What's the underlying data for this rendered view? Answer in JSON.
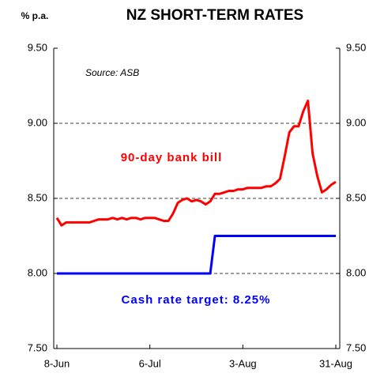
{
  "chart_data": {
    "type": "line",
    "title": "NZ SHORT-TERM RATES",
    "y_label": "% p.a.",
    "annotation": "Source: ASB",
    "categories": [
      "8-Jun",
      null,
      null,
      null,
      null,
      null,
      null,
      null,
      null,
      null,
      null,
      null,
      null,
      null,
      null,
      null,
      null,
      null,
      null,
      null,
      "6-Jul",
      null,
      null,
      null,
      null,
      null,
      null,
      null,
      null,
      null,
      null,
      null,
      null,
      null,
      null,
      null,
      null,
      null,
      null,
      null,
      "3-Aug",
      null,
      null,
      null,
      null,
      null,
      null,
      null,
      null,
      null,
      null,
      null,
      null,
      null,
      null,
      null,
      null,
      null,
      null,
      null,
      "31-Aug"
    ],
    "series": [
      {
        "name": "90-day bank bill",
        "color": "#ff0000",
        "values": [
          8.37,
          8.32,
          8.34,
          8.34,
          8.34,
          8.34,
          8.34,
          8.34,
          8.35,
          8.36,
          8.36,
          8.36,
          8.37,
          8.36,
          8.37,
          8.36,
          8.37,
          8.37,
          8.36,
          8.37,
          8.37,
          8.37,
          8.36,
          8.35,
          8.35,
          8.4,
          8.47,
          8.49,
          8.5,
          8.48,
          8.49,
          8.48,
          8.46,
          8.48,
          8.53,
          8.53,
          8.54,
          8.55,
          8.55,
          8.56,
          8.56,
          8.57,
          8.57,
          8.57,
          8.57,
          8.58,
          8.58,
          8.6,
          8.63,
          8.78,
          8.94,
          8.98,
          8.98,
          9.08,
          9.15,
          8.8,
          8.65,
          8.54,
          8.56,
          8.59,
          8.61
        ]
      },
      {
        "name": "Cash rate target: 8.25%",
        "color": "#0000ff",
        "values": [
          8.0,
          8.0,
          8.0,
          8.0,
          8.0,
          8.0,
          8.0,
          8.0,
          8.0,
          8.0,
          8.0,
          8.0,
          8.0,
          8.0,
          8.0,
          8.0,
          8.0,
          8.0,
          8.0,
          8.0,
          8.0,
          8.0,
          8.0,
          8.0,
          8.0,
          8.0,
          8.0,
          8.0,
          8.0,
          8.0,
          8.0,
          8.0,
          8.0,
          8.0,
          8.25,
          8.25,
          8.25,
          8.25,
          8.25,
          8.25,
          8.25,
          8.25,
          8.25,
          8.25,
          8.25,
          8.25,
          8.25,
          8.25,
          8.25,
          8.25,
          8.25,
          8.25,
          8.25,
          8.25,
          8.25,
          8.25,
          8.25,
          8.25,
          8.25,
          8.25,
          8.25
        ]
      }
    ],
    "ylim": [
      7.5,
      9.5
    ],
    "yticks": [
      {
        "value": 7.5,
        "label": "7.50"
      },
      {
        "value": 8,
        "label": "8.00"
      },
      {
        "value": 8.5,
        "label": "8.50"
      },
      {
        "value": 9,
        "label": "9.00"
      },
      {
        "value": 9.5,
        "label": "9.50"
      }
    ],
    "grid": true
  }
}
